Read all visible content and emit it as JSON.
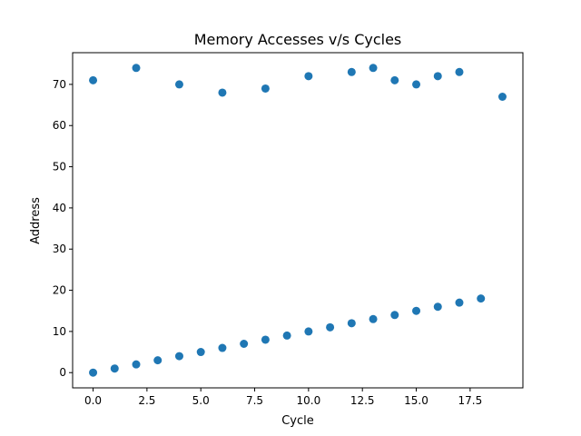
{
  "chart_data": {
    "type": "scatter",
    "title": "Memory Accesses v/s Cycles",
    "xlabel": "Cycle",
    "ylabel": "Address",
    "xlim": [
      -0.95,
      19.95
    ],
    "ylim": [
      -3.7,
      77.7
    ],
    "xticks": [
      0.0,
      2.5,
      5.0,
      7.5,
      10.0,
      12.5,
      15.0,
      17.5
    ],
    "xtick_labels": [
      "0.0",
      "2.5",
      "5.0",
      "7.5",
      "10.0",
      "12.5",
      "15.0",
      "17.5"
    ],
    "yticks": [
      0,
      10,
      20,
      30,
      40,
      50,
      60,
      70
    ],
    "ytick_labels": [
      "0",
      "10",
      "20",
      "30",
      "40",
      "50",
      "60",
      "70"
    ],
    "grid": false,
    "marker_color": "#1f77b4",
    "points": [
      {
        "x": 0,
        "y": 0
      },
      {
        "x": 1,
        "y": 1
      },
      {
        "x": 2,
        "y": 2
      },
      {
        "x": 3,
        "y": 3
      },
      {
        "x": 4,
        "y": 4
      },
      {
        "x": 5,
        "y": 5
      },
      {
        "x": 6,
        "y": 6
      },
      {
        "x": 7,
        "y": 7
      },
      {
        "x": 8,
        "y": 8
      },
      {
        "x": 9,
        "y": 9
      },
      {
        "x": 10,
        "y": 10
      },
      {
        "x": 11,
        "y": 11
      },
      {
        "x": 12,
        "y": 12
      },
      {
        "x": 13,
        "y": 13
      },
      {
        "x": 14,
        "y": 14
      },
      {
        "x": 15,
        "y": 15
      },
      {
        "x": 16,
        "y": 16
      },
      {
        "x": 17,
        "y": 17
      },
      {
        "x": 18,
        "y": 18
      },
      {
        "x": 0,
        "y": 71
      },
      {
        "x": 2,
        "y": 74
      },
      {
        "x": 4,
        "y": 70
      },
      {
        "x": 6,
        "y": 68
      },
      {
        "x": 8,
        "y": 69
      },
      {
        "x": 10,
        "y": 72
      },
      {
        "x": 12,
        "y": 73
      },
      {
        "x": 13,
        "y": 74
      },
      {
        "x": 14,
        "y": 71
      },
      {
        "x": 15,
        "y": 70
      },
      {
        "x": 16,
        "y": 72
      },
      {
        "x": 17,
        "y": 73
      },
      {
        "x": 19,
        "y": 67
      }
    ]
  }
}
